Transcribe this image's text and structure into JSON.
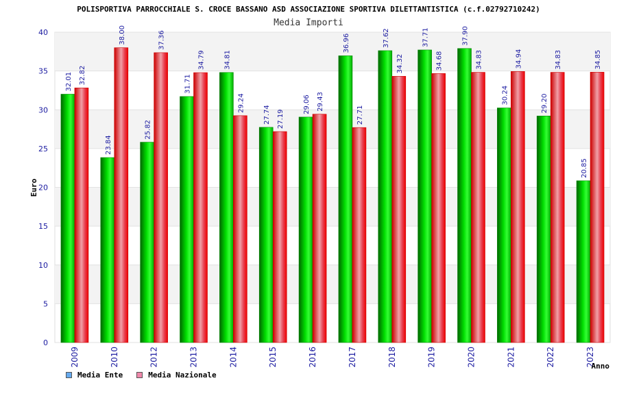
{
  "chart_data": {
    "type": "bar",
    "title": "POLISPORTIVA PARROCCHIALE S. CROCE BASSANO ASD ASSOCIAZIONE SPORTIVA DILETTANTISTICA (c.f.02792710242)",
    "subtitle": "Media Importi",
    "xlabel": "Anno",
    "ylabel": "Euro",
    "ylim": [
      0,
      40
    ],
    "yticks": [
      "0",
      "5",
      "10",
      "15",
      "20",
      "25",
      "30",
      "35",
      "40"
    ],
    "categories": [
      "2009",
      "2010",
      "2012",
      "2013",
      "2014",
      "2015",
      "2016",
      "2017",
      "2018",
      "2019",
      "2020",
      "2021",
      "2022",
      "2023"
    ],
    "series": [
      {
        "name": "Media Ente",
        "values": [
          32.01,
          23.84,
          25.82,
          31.71,
          34.81,
          27.74,
          29.06,
          36.96,
          37.62,
          37.71,
          37.9,
          30.24,
          29.2,
          20.85
        ],
        "labels": [
          "32.01",
          "23.84",
          "25.82",
          "31.71",
          "34.81",
          "27.74",
          "29.06",
          "36.96",
          "37.62",
          "37.71",
          "37.90",
          "30.24",
          "29.20",
          "20.85"
        ],
        "bar_color": "#00bb00",
        "legend_color": "#66aaee"
      },
      {
        "name": "Media Nazionale",
        "values": [
          32.82,
          38.0,
          37.36,
          34.79,
          29.24,
          27.19,
          29.43,
          27.71,
          34.32,
          34.68,
          34.83,
          34.94,
          34.83,
          34.85
        ],
        "labels": [
          "32.82",
          "38.00",
          "37.36",
          "34.79",
          "29.24",
          "27.19",
          "29.43",
          "27.71",
          "34.32",
          "34.68",
          "34.83",
          "34.94",
          "34.83",
          "34.85"
        ],
        "bar_color": "#ee1111",
        "legend_color": "#ee88aa"
      }
    ],
    "grid": true,
    "legend_position": "bottom-left"
  }
}
